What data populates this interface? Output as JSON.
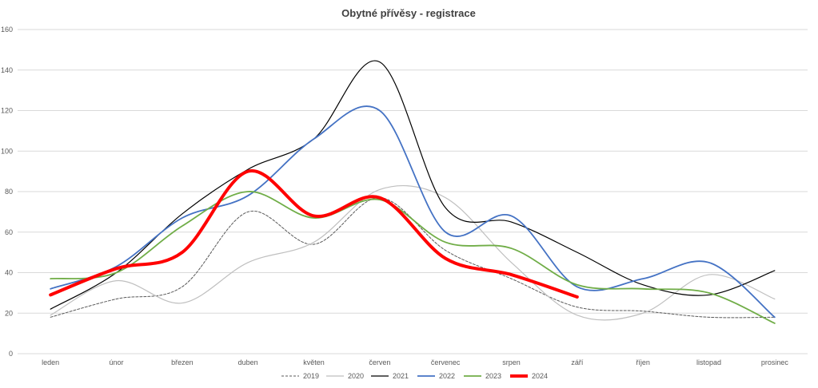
{
  "chart_data": {
    "type": "line",
    "title": "Obytné přívěsy - registrace",
    "xlabel": "",
    "ylabel": "",
    "ylim": [
      0,
      160
    ],
    "yticks": [
      0,
      20,
      40,
      60,
      80,
      100,
      120,
      140,
      160
    ],
    "grid": true,
    "legend_position": "bottom",
    "categories": [
      "leden",
      "únor",
      "březen",
      "duben",
      "květen",
      "červen",
      "červenec",
      "srpen",
      "září",
      "říjen",
      "listopad",
      "prosinec"
    ],
    "series": [
      {
        "name": "2019",
        "color": "#595959",
        "dash": "dashed",
        "width": 1,
        "values": [
          18,
          27,
          33,
          70,
          54,
          77,
          51,
          37,
          23,
          21,
          18,
          18
        ]
      },
      {
        "name": "2020",
        "color": "#bfbfbf",
        "dash": "solid",
        "width": 1.2,
        "values": [
          19,
          36,
          25,
          45,
          55,
          81,
          77,
          45,
          19,
          20,
          39,
          27
        ]
      },
      {
        "name": "2021",
        "color": "#000000",
        "dash": "solid",
        "width": 1.2,
        "values": [
          22,
          40,
          69,
          91,
          106,
          144,
          72,
          65,
          50,
          34,
          29,
          41
        ]
      },
      {
        "name": "2022",
        "color": "#4472c4",
        "dash": "solid",
        "width": 1.8,
        "values": [
          32,
          43,
          67,
          78,
          106,
          120,
          60,
          68,
          33,
          37,
          45,
          18
        ]
      },
      {
        "name": "2023",
        "color": "#70ad47",
        "dash": "solid",
        "width": 1.8,
        "values": [
          37,
          40,
          63,
          80,
          67,
          76,
          55,
          52,
          34,
          32,
          30,
          15
        ]
      },
      {
        "name": "2024",
        "color": "#ff0000",
        "dash": "solid",
        "width": 4,
        "values": [
          29,
          42,
          50,
          90,
          68,
          77,
          47,
          39,
          28,
          null,
          null,
          null
        ]
      }
    ]
  }
}
